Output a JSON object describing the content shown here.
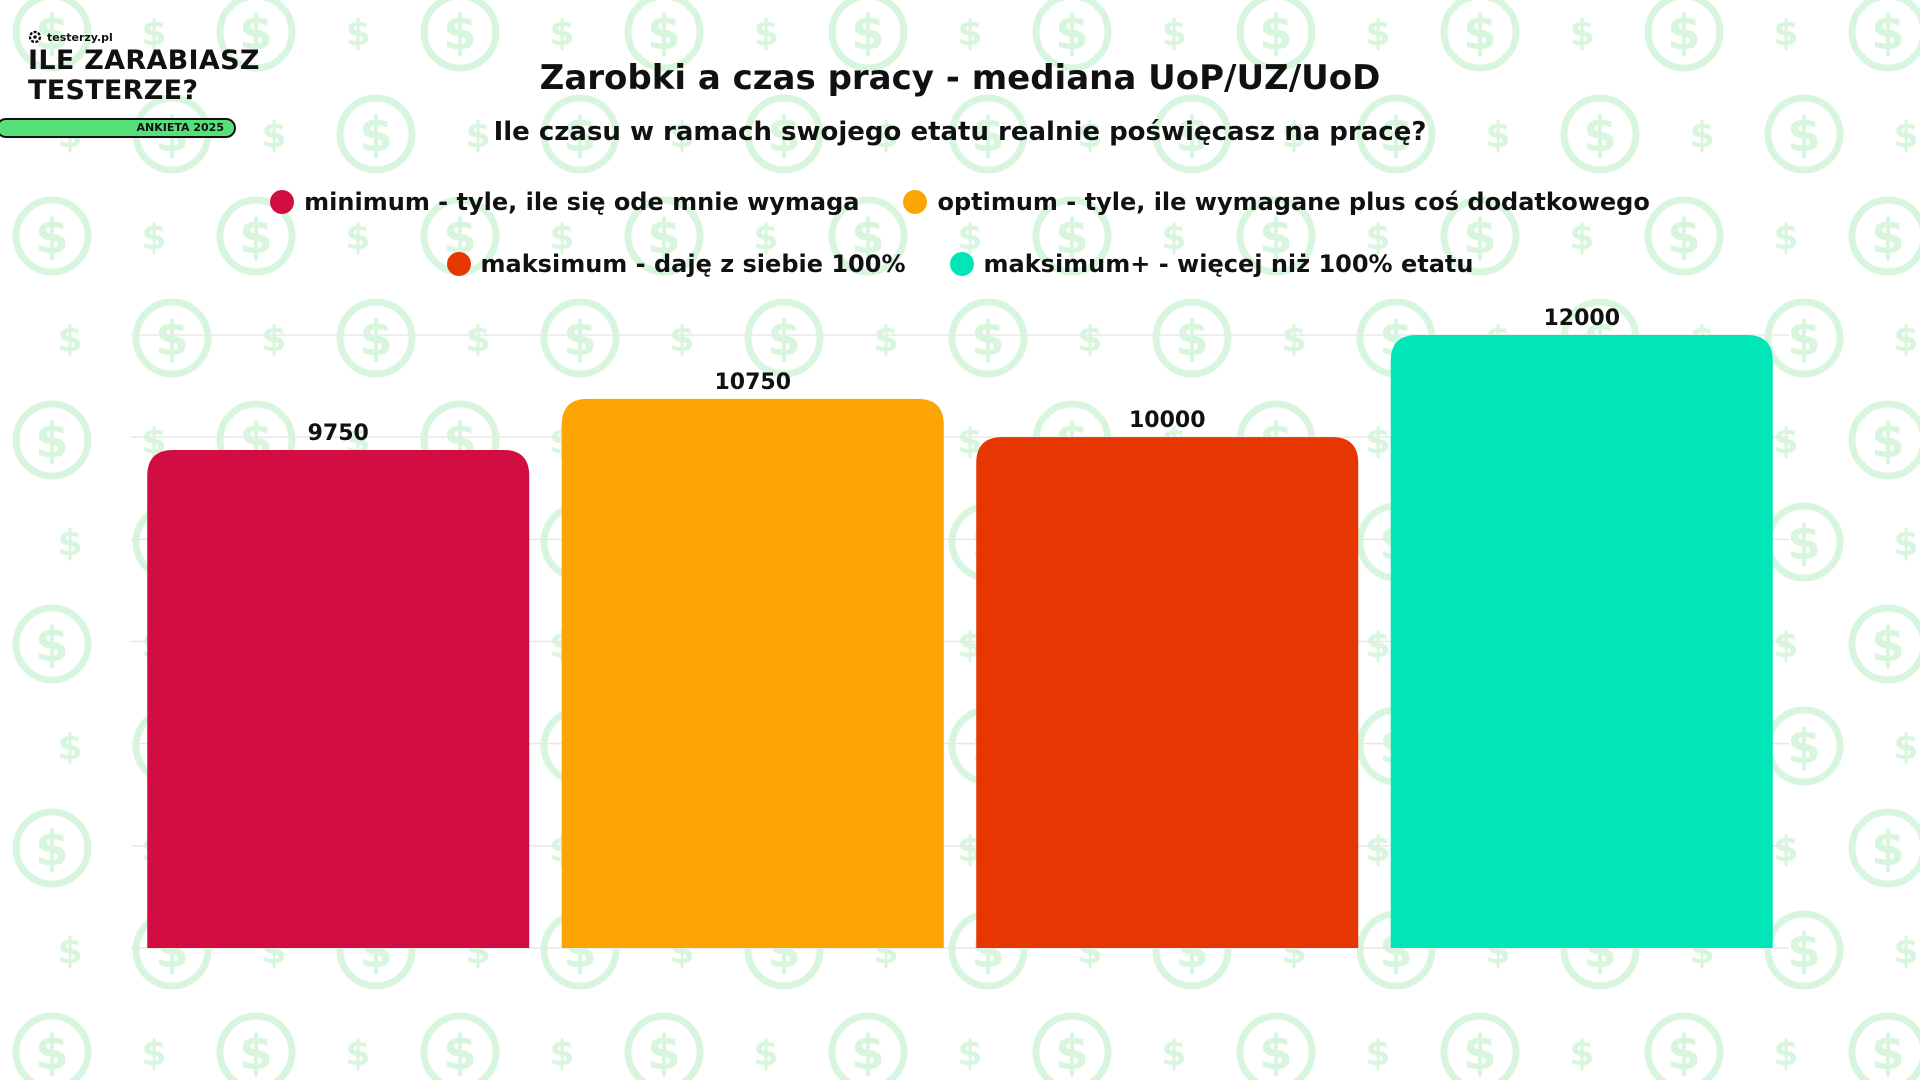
{
  "logo": {
    "site": "testerzy.pl",
    "title_line1": "ILE ZARABIASZ",
    "title_line2": "TESTERZE?",
    "badge": "ANKIETA 2025"
  },
  "colors": {
    "minimum": "#d10d42",
    "optimum": "#fca402",
    "maksimum": "#e63703",
    "maksimum_plus": "#00e6b9",
    "pattern": "#d7f6dd"
  },
  "chart_data": {
    "type": "bar",
    "title": "Zarobki a czas pracy - mediana UoP/UZ/UoD",
    "subtitle": "Ile czasu w ramach swojego etatu realnie poświęcasz na pracę?",
    "categories": [
      "minimum - tyle, ile się ode mnie wymaga",
      "optimum - tyle, ile wymagane plus coś dodatkowego",
      "maksimum - daję z siebie 100%",
      "maksimum+ - więcej niż 100% etatu"
    ],
    "values": [
      9750,
      10750,
      10000,
      12000
    ],
    "data_labels": [
      "9750",
      "10750",
      "10000",
      "12000"
    ],
    "bar_colors": [
      "#d10d42",
      "#fca402",
      "#e63703",
      "#00e6b9"
    ],
    "ylim": [
      0,
      12000
    ],
    "grid": true,
    "legend_position": "top"
  }
}
